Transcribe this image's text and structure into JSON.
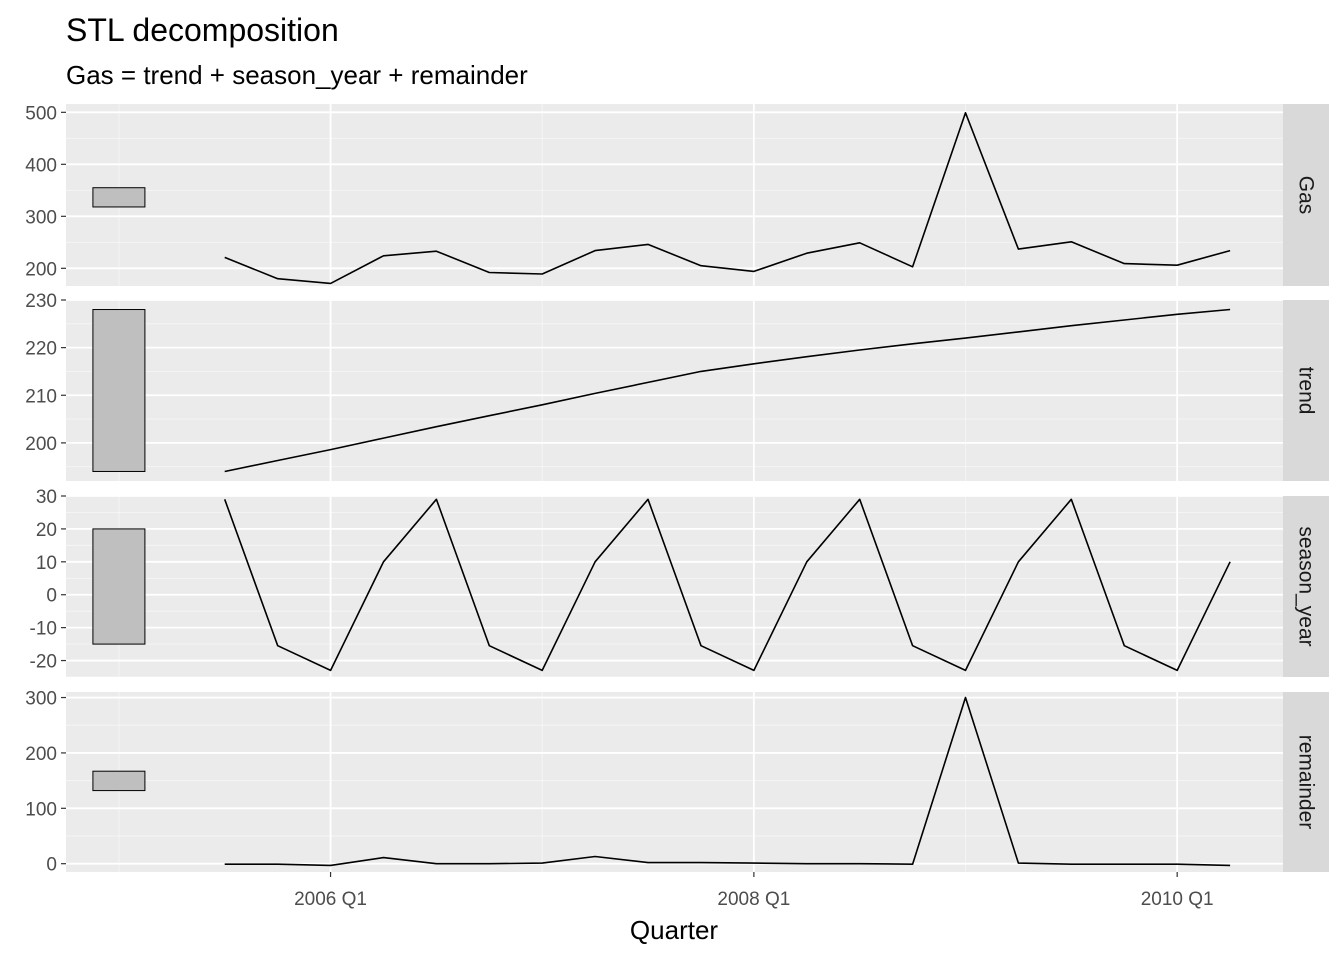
{
  "title": "STL decomposition",
  "subtitle": "Gas = trend + season_year + remainder",
  "colors": {
    "panel_bg": "#ebebeb",
    "grid_major": "#ffffff",
    "strip_bg": "#d9d9d9",
    "line": "#000000",
    "range_bar": "#bfbfbf"
  },
  "chart_data": {
    "type": "line",
    "title": "STL decomposition",
    "subtitle": "Gas = trend + season_year + remainder",
    "xlabel": "Quarter",
    "x_ticks": [
      "2006 Q1",
      "2008 Q1",
      "2010 Q1"
    ],
    "x": [
      "2005 Q3",
      "2005 Q4",
      "2006 Q1",
      "2006 Q2",
      "2006 Q3",
      "2006 Q4",
      "2007 Q1",
      "2007 Q2",
      "2007 Q3",
      "2007 Q4",
      "2008 Q1",
      "2008 Q2",
      "2008 Q3",
      "2008 Q4",
      "2009 Q1",
      "2009 Q2",
      "2009 Q3",
      "2009 Q4",
      "2010 Q1",
      "2010 Q2"
    ],
    "grid": true,
    "facets": [
      {
        "name": "Gas",
        "ylim": [
          166,
          516
        ],
        "y_ticks": [
          200,
          300,
          400,
          500
        ],
        "scale_bar": [
          318,
          355
        ],
        "values": [
          221,
          180,
          171,
          224,
          233,
          192,
          189,
          234,
          246,
          205,
          194,
          229,
          249,
          203,
          499,
          237,
          251,
          209,
          206,
          234
        ]
      },
      {
        "name": "trend",
        "ylim": [
          192,
          230
        ],
        "y_ticks": [
          200,
          210,
          220,
          230
        ],
        "scale_bar": [
          194,
          228
        ],
        "values": [
          194,
          196.3,
          198.6,
          201,
          203.4,
          205.7,
          208,
          210.4,
          212.7,
          215,
          216.6,
          218.1,
          219.5,
          220.8,
          222,
          223.3,
          224.6,
          225.8,
          227,
          228
        ]
      },
      {
        "name": "season_year",
        "ylim": [
          -25,
          30
        ],
        "y_ticks": [
          -20,
          -10,
          0,
          10,
          20,
          30
        ],
        "scale_bar": [
          -15,
          20
        ],
        "values": [
          29,
          -15.5,
          -23,
          10,
          29,
          -15.5,
          -23,
          10,
          29,
          -15.5,
          -23,
          10,
          29,
          -15.5,
          -23,
          10,
          29,
          -15.5,
          -23,
          10
        ]
      },
      {
        "name": "remainder",
        "ylim": [
          -15,
          310
        ],
        "y_ticks": [
          0,
          100,
          200,
          300
        ],
        "scale_bar": [
          132,
          167
        ],
        "values": [
          -1,
          -1,
          -3,
          11,
          0,
          0,
          1,
          13,
          2,
          2,
          1,
          0,
          0,
          -1,
          300,
          1,
          -1,
          -1,
          -1,
          -3
        ]
      }
    ]
  }
}
